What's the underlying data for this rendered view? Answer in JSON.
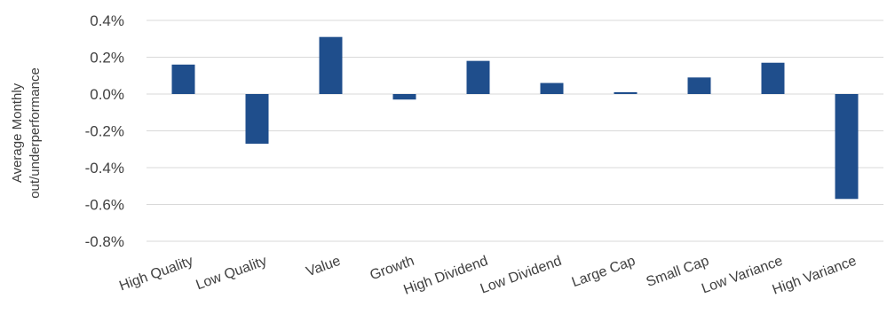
{
  "chart_data": {
    "type": "bar",
    "title": "",
    "ylabel_lines": [
      "Average Monthly",
      "out/underperformance"
    ],
    "xlabel": "",
    "ylim": [
      -0.8,
      0.4
    ],
    "yticks": [
      0.4,
      0.2,
      0.0,
      -0.2,
      -0.4,
      -0.6,
      -0.8
    ],
    "ytick_labels": [
      "0.4%",
      "0.2%",
      "0.0%",
      "-0.2%",
      "-0.4%",
      "-0.6%",
      "-0.8%"
    ],
    "grid": true,
    "legend": "none",
    "bar_color": "#1f4e8c",
    "categories": [
      "High Quality",
      "Low Quality",
      "Value",
      "Growth",
      "High Dividend",
      "Low Dividend",
      "Large Cap",
      "Small Cap",
      "Low Variance",
      "High Variance"
    ],
    "values": [
      0.16,
      -0.27,
      0.31,
      -0.03,
      0.18,
      0.06,
      0.01,
      0.09,
      0.17,
      -0.57
    ]
  }
}
